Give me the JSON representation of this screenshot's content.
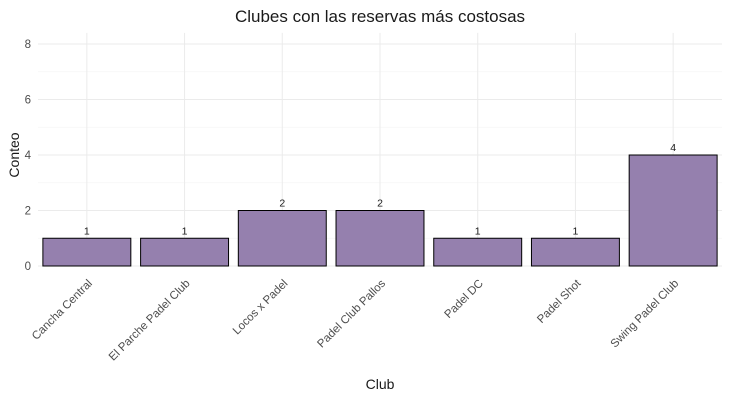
{
  "chart_data": {
    "type": "bar",
    "title": "Clubes con las reservas más costosas",
    "xlabel": "Club",
    "ylabel": "Conteo",
    "categories": [
      "Cancha Central",
      "El Parche Padel Club",
      "Locos x Padel",
      "Padel Club Pallos",
      "Padel DC",
      "Padel Shot",
      "Swing Padel Club"
    ],
    "values": [
      1,
      1,
      2,
      2,
      1,
      1,
      4
    ],
    "data_labels": [
      "1",
      "1",
      "2",
      "2",
      "1",
      "1",
      "4"
    ],
    "yticks": [
      0,
      2,
      4,
      6,
      8
    ],
    "ytick_labels": [
      "0",
      "2",
      "4",
      "6",
      "8"
    ],
    "ylim": [
      0,
      8.4
    ],
    "grid": true,
    "legend": "none",
    "bar_color": "#9580ae",
    "bar_edge_color": "#000000"
  }
}
